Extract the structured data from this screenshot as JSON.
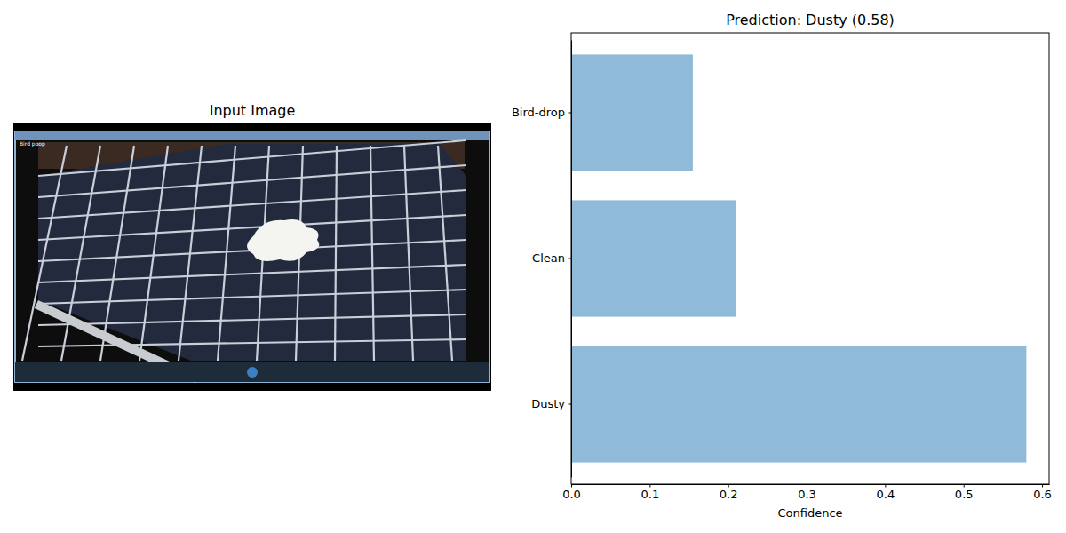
{
  "image": {
    "title": "Input Image",
    "caption": "Bird poop"
  },
  "chart_data": {
    "type": "bar",
    "orientation": "horizontal",
    "title": "Prediction: Dusty (0.58)",
    "x_label": "Confidence",
    "categories": [
      "Dusty",
      "Clean",
      "Bird-drop"
    ],
    "values": [
      0.58,
      0.21,
      0.155
    ],
    "color": "#1f77b4",
    "xlim": [
      0,
      0.609
    ],
    "xticks": [
      {
        "value": 0,
        "label": "0.0"
      },
      0.1,
      0.2,
      0.3,
      0.4,
      0.5,
      0.6
    ],
    "grid": false
  }
}
